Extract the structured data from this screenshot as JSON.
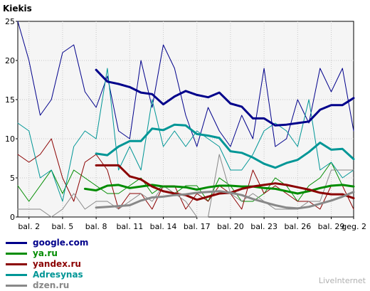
{
  "chart_data": {
    "type": "line",
    "title": "Kiekis",
    "xlabel": "",
    "ylabel": "",
    "ylim": [
      0,
      25
    ],
    "yticks": [
      0,
      5,
      10,
      15,
      20,
      25
    ],
    "xlim": [
      1,
      31
    ],
    "xticks": [
      {
        "x": 2,
        "label": "bal. 2"
      },
      {
        "x": 5,
        "label": "bal. 5"
      },
      {
        "x": 8,
        "label": "bal. 8"
      },
      {
        "x": 11,
        "label": "bal. 11"
      },
      {
        "x": 14,
        "label": "bal. 14"
      },
      {
        "x": 17,
        "label": "bal. 17"
      },
      {
        "x": 20,
        "label": "bal. 20"
      },
      {
        "x": 23,
        "label": "bal. 23"
      },
      {
        "x": 26,
        "label": "bal. 26"
      },
      {
        "x": 29,
        "label": "bal. 29"
      },
      {
        "x": 31,
        "label": "geg. 2"
      }
    ],
    "grid": true,
    "legend_position": "bottom-left",
    "x": [
      1,
      2,
      3,
      4,
      5,
      6,
      7,
      8,
      9,
      10,
      11,
      12,
      13,
      14,
      15,
      16,
      17,
      18,
      19,
      20,
      21,
      22,
      23,
      24,
      25,
      26,
      27,
      28,
      29,
      30,
      31
    ],
    "series": [
      {
        "name": "google.com",
        "color": "#00008b",
        "values": [
          25,
          20,
          13,
          15,
          21,
          22,
          16,
          14,
          18,
          11,
          10,
          20,
          14,
          22,
          19,
          13,
          9,
          14,
          11,
          9,
          13,
          10,
          19,
          9,
          10,
          15,
          12,
          19,
          16,
          19,
          11
        ],
        "avg_x": [
          8,
          9,
          10,
          11,
          12,
          13,
          14,
          15,
          16,
          17,
          18,
          19,
          20,
          21,
          22,
          23,
          24,
          25,
          26,
          27,
          28,
          29,
          30,
          31
        ],
        "avg_values": [
          18.8,
          17.3,
          17.0,
          16.6,
          15.9,
          15.7,
          14.4,
          15.4,
          16.1,
          15.6,
          15.3,
          15.9,
          14.5,
          14.1,
          12.6,
          12.6,
          11.7,
          11.8,
          12.0,
          12.2,
          13.7,
          14.3,
          14.3,
          15.2
        ]
      },
      {
        "name": "ya.ru",
        "color": "#008c00",
        "values": [
          4,
          2,
          4,
          6,
          3,
          6,
          5,
          4,
          3,
          3,
          4,
          5,
          3,
          4,
          3,
          4,
          4,
          2,
          5,
          4,
          2,
          2,
          3,
          5,
          4,
          2,
          4,
          5,
          7,
          4,
          4
        ],
        "avg_x": [
          7,
          8,
          9,
          10,
          11,
          12,
          13,
          14,
          15,
          16,
          17,
          18,
          19,
          20,
          21,
          22,
          23,
          24,
          25,
          26,
          27,
          28,
          29,
          30,
          31
        ],
        "avg_values": [
          3.6,
          3.4,
          4.0,
          4.1,
          3.7,
          3.9,
          4.1,
          3.9,
          3.9,
          3.8,
          3.5,
          3.8,
          4.0,
          4.0,
          3.9,
          3.9,
          3.7,
          3.6,
          3.3,
          3.0,
          3.3,
          3.7,
          4.0,
          4.1,
          3.9
        ]
      },
      {
        "name": "yandex.ru",
        "color": "#8b0000",
        "values": [
          8,
          7,
          8,
          10,
          5,
          2,
          7,
          8,
          6,
          1,
          3,
          3,
          1,
          4,
          4,
          1,
          3,
          2,
          4,
          3,
          1,
          6,
          3,
          4,
          3,
          2,
          2,
          1,
          4,
          4,
          1
        ],
        "avg_x": [
          8,
          9,
          10,
          11,
          12,
          13,
          14,
          15,
          16,
          17,
          18,
          19,
          20,
          21,
          22,
          23,
          24,
          25,
          26,
          27,
          28,
          29,
          30,
          31
        ],
        "avg_values": [
          6.6,
          6.6,
          6.6,
          5.2,
          4.8,
          3.9,
          3.3,
          3.0,
          2.8,
          2.2,
          2.6,
          3.0,
          3.1,
          3.6,
          3.9,
          4.1,
          4.3,
          4.1,
          3.8,
          3.5,
          3.1,
          2.9,
          2.9,
          2.4
        ]
      },
      {
        "name": "Adresynas",
        "color": "#009696",
        "values": [
          12,
          11,
          5,
          6,
          2,
          9,
          11,
          10,
          19,
          6,
          9,
          6,
          15,
          9,
          11,
          9,
          11,
          10,
          9,
          6,
          6,
          8,
          11,
          12,
          11,
          9,
          15,
          6,
          7,
          5,
          6
        ],
        "avg_x": [
          8,
          9,
          10,
          11,
          12,
          13,
          14,
          15,
          16,
          17,
          18,
          19,
          20,
          21,
          22,
          23,
          24,
          25,
          26,
          27,
          28,
          29,
          30,
          31
        ],
        "avg_values": [
          8.1,
          7.9,
          9.0,
          9.7,
          9.7,
          11.3,
          11.1,
          11.8,
          11.7,
          10.6,
          10.4,
          10.1,
          8.4,
          8.2,
          7.6,
          6.8,
          6.3,
          6.9,
          7.3,
          8.3,
          9.5,
          8.6,
          8.7,
          7.4
        ]
      },
      {
        "name": "dzen.ru",
        "color": "#888888",
        "values": [
          1,
          1,
          1,
          0,
          1,
          3,
          1,
          2,
          2,
          1,
          2,
          3,
          2,
          4,
          3,
          2,
          0,
          0,
          8,
          3,
          2,
          3,
          2,
          1,
          1,
          1,
          2,
          2,
          6,
          6,
          6
        ],
        "avg_x": [
          8,
          9,
          10,
          11,
          12,
          13,
          14,
          15,
          16,
          17,
          18,
          19,
          20,
          21,
          22,
          23,
          24,
          25,
          26,
          27,
          28,
          29,
          30,
          31
        ],
        "avg_values": [
          1.2,
          1.3,
          1.4,
          1.5,
          2.1,
          2.5,
          2.6,
          2.8,
          2.9,
          3.1,
          3.2,
          3.3,
          3.1,
          2.8,
          2.3,
          1.9,
          1.5,
          1.2,
          1.1,
          1.3,
          1.7,
          2.1,
          2.6,
          3.2
        ]
      }
    ]
  },
  "branding": "LiveInternet"
}
